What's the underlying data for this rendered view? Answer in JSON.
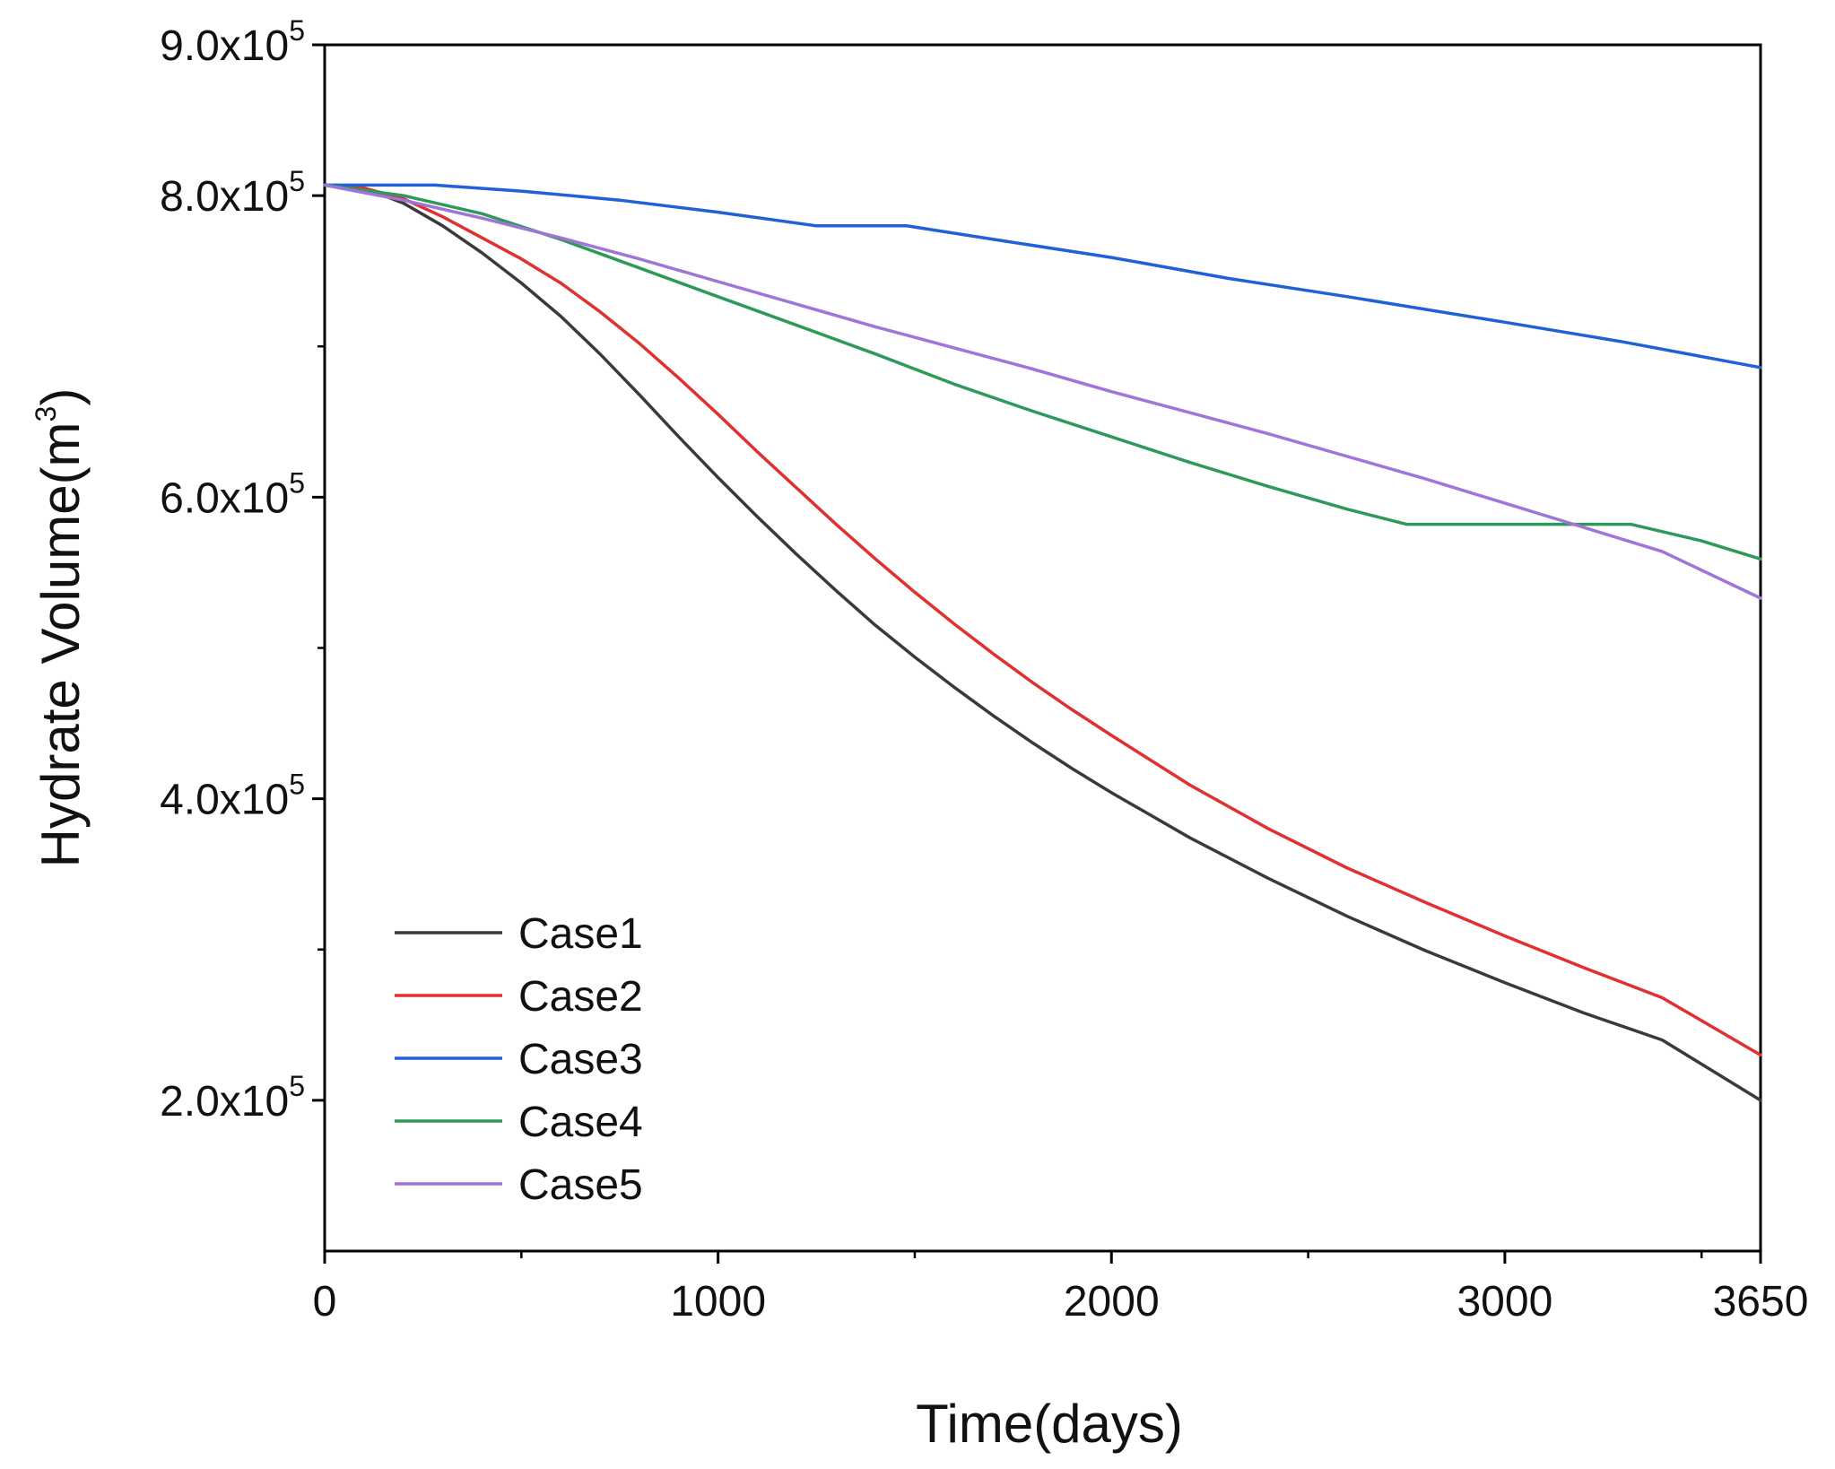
{
  "chart_data": {
    "type": "line",
    "title": "",
    "xlabel": "Time(days)",
    "ylabel_main": "Hydrate Volume(m",
    "ylabel_sup": "3",
    "ylabel_end": ")",
    "xlim": [
      0,
      3650
    ],
    "ylim": [
      100000,
      900000
    ],
    "x_ticks": [
      {
        "value": 0,
        "label": "0"
      },
      {
        "value": 1000,
        "label": "1000"
      },
      {
        "value": 2000,
        "label": "2000"
      },
      {
        "value": 3000,
        "label": "3000"
      },
      {
        "value": 3650,
        "label": "3650"
      }
    ],
    "x_minor_ticks": [
      500,
      1500,
      2500,
      3500
    ],
    "y_ticks": [
      {
        "value": 200000,
        "mant": "2.0x10",
        "exp": "5"
      },
      {
        "value": 400000,
        "mant": "4.0x10",
        "exp": "5"
      },
      {
        "value": 600000,
        "mant": "6.0x10",
        "exp": "5"
      },
      {
        "value": 800000,
        "mant": "8.0x10",
        "exp": "5"
      },
      {
        "value": 900000,
        "mant": "9.0x10",
        "exp": "5"
      }
    ],
    "y_minor_ticks": [
      300000,
      500000,
      700000
    ],
    "grid": false,
    "legend_position": "bottom-left",
    "series": [
      {
        "name": "Case1",
        "color": "#3a3a3a",
        "x": [
          0,
          100,
          200,
          300,
          400,
          500,
          600,
          700,
          800,
          900,
          1000,
          1100,
          1200,
          1300,
          1400,
          1500,
          1600,
          1700,
          1800,
          1900,
          2000,
          2200,
          2400,
          2600,
          2800,
          3000,
          3200,
          3400,
          3650
        ],
        "values": [
          807000,
          805000,
          795000,
          780000,
          762000,
          742000,
          720000,
          695000,
          668000,
          640000,
          613000,
          587000,
          562000,
          538000,
          515000,
          494000,
          474000,
          455000,
          437000,
          420000,
          404000,
          374000,
          347000,
          322000,
          299000,
          278000,
          258000,
          240000,
          200000
        ]
      },
      {
        "name": "Case2",
        "color": "#e03030",
        "x": [
          0,
          100,
          200,
          300,
          400,
          500,
          600,
          700,
          800,
          900,
          1000,
          1100,
          1200,
          1300,
          1400,
          1500,
          1600,
          1700,
          1800,
          1900,
          2000,
          2200,
          2400,
          2600,
          2800,
          3000,
          3200,
          3400,
          3650
        ],
        "values": [
          807000,
          805000,
          798000,
          786000,
          772000,
          758000,
          742000,
          723000,
          702000,
          679000,
          655000,
          630000,
          606000,
          582000,
          559000,
          537000,
          516000,
          496000,
          477000,
          459000,
          442000,
          409000,
          380000,
          354000,
          331000,
          309000,
          288000,
          268000,
          230000
        ]
      },
      {
        "name": "Case3",
        "color": "#2060d8",
        "x": [
          0,
          280,
          500,
          750,
          1000,
          1250,
          1480,
          1700,
          2000,
          2300,
          2600,
          3000,
          3300,
          3650
        ],
        "values": [
          807000,
          807000,
          803000,
          797000,
          789000,
          780000,
          780000,
          771000,
          759000,
          745000,
          733000,
          716000,
          703000,
          686000
        ]
      },
      {
        "name": "Case4",
        "color": "#2e9a5a",
        "x": [
          0,
          200,
          400,
          600,
          800,
          1000,
          1200,
          1400,
          1600,
          1800,
          2000,
          2200,
          2400,
          2600,
          2750,
          3000,
          3200,
          3320,
          3500,
          3650
        ],
        "values": [
          807000,
          800000,
          788000,
          771000,
          752000,
          733000,
          714000,
          695000,
          675000,
          657000,
          640000,
          623000,
          607000,
          592000,
          582000,
          582000,
          582000,
          582000,
          571000,
          559000
        ]
      },
      {
        "name": "Case5",
        "color": "#a074d8",
        "x": [
          0,
          200,
          400,
          600,
          800,
          1000,
          1200,
          1400,
          1600,
          1800,
          2000,
          2200,
          2400,
          2600,
          2800,
          3000,
          3200,
          3400,
          3650
        ],
        "values": [
          807000,
          797000,
          785000,
          772000,
          758000,
          743000,
          728000,
          713000,
          699000,
          685000,
          670000,
          656000,
          642000,
          627000,
          612000,
          596000,
          580000,
          564000,
          533000
        ]
      }
    ]
  }
}
